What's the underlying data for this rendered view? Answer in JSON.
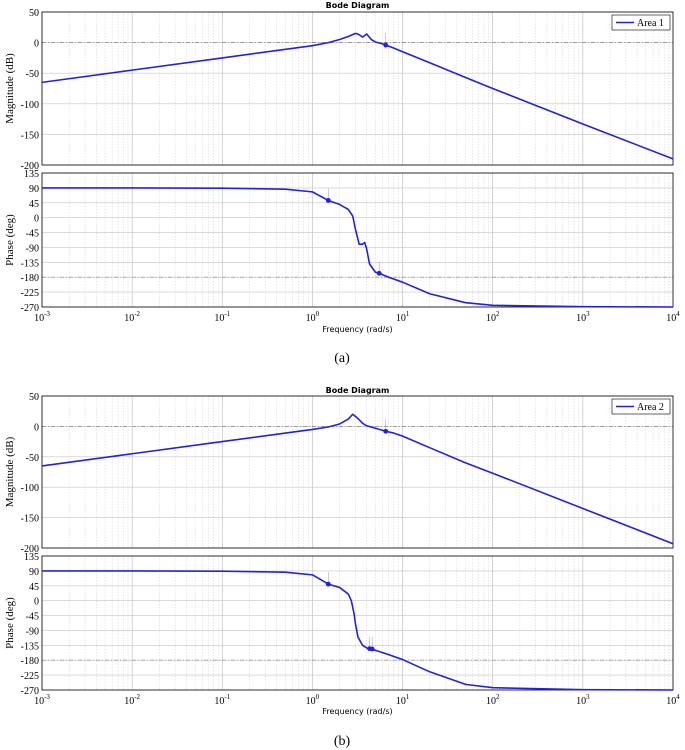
{
  "figure": {
    "caption_a": "(a)",
    "caption_b": "(b)"
  },
  "chart_data": [
    {
      "type": "line",
      "title": "Bode Diagram",
      "subplot_label": "(a)",
      "xlabel": "Frequency  (rad/s)",
      "xscale": "log",
      "xlim": [
        0.001,
        10000
      ],
      "x_ticks": [
        {
          "value": 0.001,
          "base": "10",
          "exp": "-3"
        },
        {
          "value": 0.01,
          "base": "10",
          "exp": "-2"
        },
        {
          "value": 0.1,
          "base": "10",
          "exp": "-1"
        },
        {
          "value": 1,
          "base": "10",
          "exp": "0"
        },
        {
          "value": 10,
          "base": "10",
          "exp": "1"
        },
        {
          "value": 100,
          "base": "10",
          "exp": "2"
        },
        {
          "value": 1000,
          "base": "10",
          "exp": "3"
        },
        {
          "value": 10000,
          "base": "10",
          "exp": "4"
        }
      ],
      "grid": true,
      "legend": {
        "position": "top-right",
        "entries": [
          "Area 1"
        ]
      },
      "series_color": "#2222dd",
      "magnitude": {
        "ylabel": "Magnitude (dB)",
        "ylim": [
          -200,
          50
        ],
        "yticks": [
          50,
          0,
          -50,
          -100,
          -150,
          -200
        ],
        "series": [
          {
            "name": "Area 1",
            "x": [
              0.001,
              0.01,
              0.1,
              1,
              1.5,
              2,
              2.5,
              3,
              3.3,
              3.6,
              4,
              4.5,
              5,
              6,
              6.5,
              8,
              10,
              20,
              50,
              100,
              1000,
              10000
            ],
            "y": [
              -65,
              -45,
              -25,
              -5,
              0,
              5,
              10,
              15,
              13,
              9,
              14,
              5,
              1,
              -2,
              -4,
              -9,
              -15,
              -33,
              -57,
              -75,
              -133,
              -190
            ]
          }
        ],
        "markers": [
          {
            "x": 6.5,
            "y": -4
          }
        ]
      },
      "phase": {
        "ylabel": "Phase (deg)",
        "ylim": [
          -270,
          135
        ],
        "yticks": [
          135,
          90,
          45,
          0,
          -45,
          -90,
          -135,
          -180,
          -225,
          -270
        ],
        "series": [
          {
            "name": "Area 1",
            "x": [
              0.001,
              0.01,
              0.1,
              0.5,
              1,
              1.5,
              2,
              2.5,
              2.8,
              3.0,
              3.3,
              3.6,
              3.8,
              4.0,
              4.3,
              5.0,
              5.5,
              7,
              10,
              20,
              50,
              100,
              1000,
              10000
            ],
            "y": [
              90,
              90,
              89,
              86,
              78,
              52,
              40,
              25,
              5,
              -35,
              -80,
              -80,
              -75,
              -95,
              -140,
              -165,
              -168,
              -180,
              -195,
              -230,
              -257,
              -265,
              -269,
              -270
            ]
          }
        ],
        "markers": [
          {
            "x": 1.5,
            "y": 52
          },
          {
            "x": 5.5,
            "y": -168
          }
        ]
      }
    },
    {
      "type": "line",
      "title": "Bode Diagram",
      "subplot_label": "(b)",
      "xlabel": "Frequency  (rad/s)",
      "xscale": "log",
      "xlim": [
        0.001,
        10000
      ],
      "x_ticks": [
        {
          "value": 0.001,
          "base": "10",
          "exp": "-3"
        },
        {
          "value": 0.01,
          "base": "10",
          "exp": "-2"
        },
        {
          "value": 0.1,
          "base": "10",
          "exp": "-1"
        },
        {
          "value": 1,
          "base": "10",
          "exp": "0"
        },
        {
          "value": 10,
          "base": "10",
          "exp": "1"
        },
        {
          "value": 100,
          "base": "10",
          "exp": "2"
        },
        {
          "value": 1000,
          "base": "10",
          "exp": "3"
        },
        {
          "value": 10000,
          "base": "10",
          "exp": "4"
        }
      ],
      "grid": true,
      "legend": {
        "position": "top-right",
        "entries": [
          "Area 2"
        ]
      },
      "series_color": "#2222dd",
      "magnitude": {
        "ylabel": "Magnitude (dB)",
        "ylim": [
          -200,
          50
        ],
        "yticks": [
          50,
          0,
          -50,
          -100,
          -150,
          -200
        ],
        "series": [
          {
            "name": "Area 2",
            "x": [
              0.001,
              0.01,
              0.1,
              1,
              1.5,
              2,
              2.5,
              2.8,
              3.2,
              3.6,
              4.0,
              5,
              6.5,
              8,
              10,
              20,
              50,
              100,
              1000,
              10000
            ],
            "y": [
              -65,
              -45,
              -25,
              -5,
              -1,
              4,
              12,
              20,
              13,
              5,
              1,
              -3,
              -8,
              -11,
              -16,
              -35,
              -60,
              -77,
              -135,
              -193
            ]
          }
        ],
        "markers": [
          {
            "x": 6.5,
            "y": -8
          }
        ]
      },
      "phase": {
        "ylabel": "Phase (deg)",
        "ylim": [
          -270,
          135
        ],
        "yticks": [
          135,
          90,
          45,
          0,
          -45,
          -90,
          -135,
          -180,
          -225,
          -270
        ],
        "series": [
          {
            "name": "Area 2",
            "x": [
              0.001,
              0.01,
              0.1,
              0.5,
              1,
              1.5,
              2,
              2.5,
              2.7,
              2.9,
              3.0,
              3.2,
              3.6,
              4,
              4.5,
              5,
              7,
              10,
              20,
              50,
              100,
              1000,
              10000
            ],
            "y": [
              90,
              90,
              89,
              86,
              78,
              50,
              40,
              20,
              0,
              -40,
              -70,
              -110,
              -135,
              -143,
              -147,
              -150,
              -163,
              -178,
              -215,
              -253,
              -263,
              -269,
              -270
            ]
          }
        ],
        "markers": [
          {
            "x": 1.5,
            "y": 50
          },
          {
            "x": 4.3,
            "y": -145
          },
          {
            "x": 4.6,
            "y": -146
          }
        ]
      }
    }
  ]
}
